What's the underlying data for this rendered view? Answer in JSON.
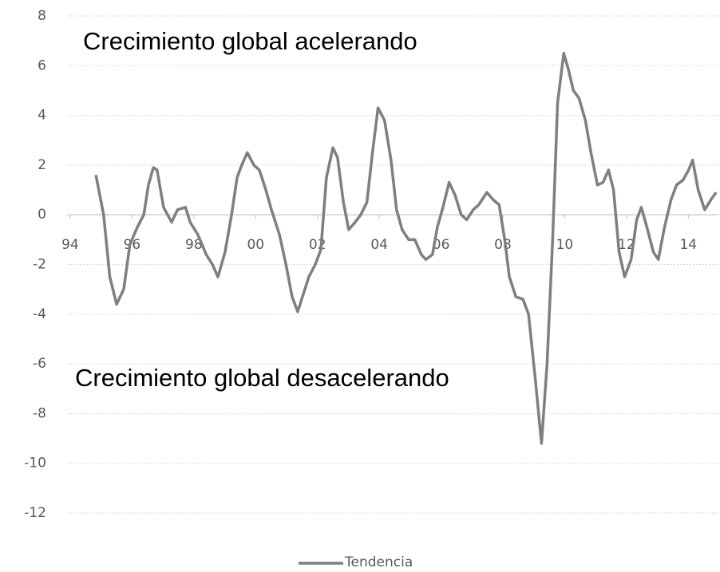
{
  "chart_data": {
    "type": "line",
    "annotations": [
      "Crecimiento global acelerando",
      "Crecimiento global desacelerando"
    ],
    "x": [
      1994.83,
      1995.08,
      1995.28,
      1995.5,
      1995.73,
      1995.93,
      1996.17,
      1996.38,
      1996.53,
      1996.69,
      1996.81,
      1997.02,
      1997.28,
      1997.47,
      1997.73,
      1997.88,
      1998.13,
      1998.4,
      1998.6,
      1998.78,
      1999.01,
      1999.22,
      1999.4,
      1999.55,
      1999.73,
      1999.94,
      2000.12,
      2000.33,
      2000.51,
      2000.77,
      2000.98,
      2001.18,
      2001.36,
      2001.54,
      2001.72,
      2001.93,
      2002.11,
      2002.29,
      2002.5,
      2002.65,
      2002.84,
      2003.01,
      2003.22,
      2003.4,
      2003.6,
      2003.78,
      2003.96,
      2004.17,
      2004.38,
      2004.56,
      2004.74,
      2004.95,
      2005.15,
      2005.36,
      2005.51,
      2005.72,
      2005.88,
      2006.06,
      2006.26,
      2006.45,
      2006.65,
      2006.83,
      2007.04,
      2007.22,
      2007.48,
      2007.69,
      2007.88,
      2008.06,
      2008.21,
      2008.42,
      2008.65,
      2008.83,
      2009.04,
      2009.25,
      2009.43,
      2009.61,
      2009.77,
      2009.97,
      2010.13,
      2010.28,
      2010.46,
      2010.67,
      2010.85,
      2011.06,
      2011.24,
      2011.42,
      2011.58,
      2011.76,
      2011.94,
      2012.15,
      2012.33,
      2012.48,
      2012.66,
      2012.87,
      2013.03,
      2013.23,
      2013.44,
      2013.62,
      2013.83,
      2014.01,
      2014.14,
      2014.32,
      2014.53,
      2014.73,
      2014.9
    ],
    "series": [
      {
        "name": "Tendencia",
        "color": "#7f7f7f",
        "values": [
          1.6,
          0,
          -2.5,
          -3.6,
          -3,
          -1.2,
          -0.5,
          0,
          1.2,
          1.9,
          1.8,
          0.3,
          -0.3,
          0.2,
          0.3,
          -0.3,
          -0.8,
          -1.6,
          -2,
          -2.5,
          -1.5,
          0,
          1.5,
          2.0,
          2.5,
          2.0,
          1.8,
          1,
          0.2,
          -0.8,
          -2,
          -3.3,
          -3.9,
          -3.2,
          -2.5,
          -2.0,
          -1.4,
          1.5,
          2.7,
          2.3,
          0.5,
          -0.6,
          -0.3,
          0,
          0.5,
          2.5,
          4.3,
          3.8,
          2.2,
          0.2,
          -0.6,
          -1,
          -1,
          -1.6,
          -1.8,
          -1.6,
          -0.5,
          0.3,
          1.3,
          0.8,
          0,
          -0.2,
          0.2,
          0.4,
          0.9,
          0.6,
          0.4,
          -1,
          -2.5,
          -3.3,
          -3.4,
          -4,
          -6.5,
          -9.2,
          -6,
          -1,
          4.5,
          6.5,
          5.8,
          5,
          4.7,
          3.8,
          2.5,
          1.2,
          1.3,
          1.8,
          1,
          -1.5,
          -2.5,
          -1.8,
          -0.2,
          0.3,
          -0.5,
          -1.5,
          -1.8,
          -0.5,
          0.6,
          1.2,
          1.4,
          1.8,
          2.2,
          1.0,
          0.2,
          0.6,
          0.9
        ]
      }
    ],
    "xlim": [
      1994,
      2015
    ],
    "xticks": [
      {
        "value": 1994,
        "label": "94"
      },
      {
        "value": 1996,
        "label": "96"
      },
      {
        "value": 1998,
        "label": "98"
      },
      {
        "value": 2000,
        "label": "00"
      },
      {
        "value": 2002,
        "label": "02"
      },
      {
        "value": 2004,
        "label": "04"
      },
      {
        "value": 2006,
        "label": "06"
      },
      {
        "value": 2008,
        "label": "08"
      },
      {
        "value": 2010,
        "label": "10"
      },
      {
        "value": 2012,
        "label": "12"
      },
      {
        "value": 2014,
        "label": "14"
      }
    ],
    "ylim": [
      -12,
      8
    ],
    "yticks": [
      8,
      6,
      4,
      2,
      0,
      -2,
      -4,
      -6,
      -8,
      -10,
      -12
    ],
    "grid": true
  }
}
